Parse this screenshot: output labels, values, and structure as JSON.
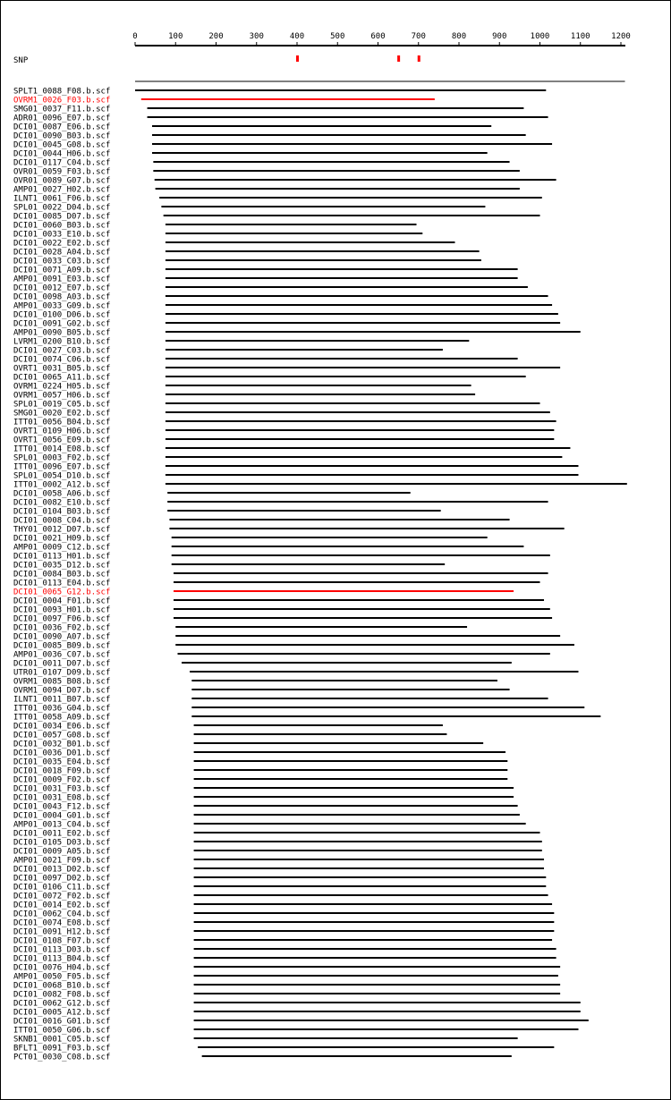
{
  "axis": {
    "min": 0,
    "max": 1200,
    "ticks": [
      0,
      100,
      200,
      300,
      400,
      500,
      600,
      700,
      800,
      900,
      1000,
      1100,
      1200
    ],
    "tick_labels": [
      "0",
      "100",
      "200",
      "300",
      "400",
      "500",
      "600",
      "700",
      "800",
      "900",
      "1000",
      "1100",
      "1200"
    ]
  },
  "snp": {
    "label": "SNP",
    "positions": [
      400,
      650,
      700
    ],
    "color": "#ff0000"
  },
  "colors": {
    "read": "#000000",
    "highlight": "#ff0000",
    "border": "#000000"
  },
  "reference": {
    "start": 0,
    "end": 1210
  },
  "reads": [
    {
      "name": "SPLT1_0088_F08.b.scf",
      "start": 0,
      "end": 1015,
      "highlight": false
    },
    {
      "name": "OVRM1_0026_F03.b.scf",
      "start": 15,
      "end": 740,
      "highlight": true
    },
    {
      "name": "SMG01_0037_F11.b.scf",
      "start": 30,
      "end": 960,
      "highlight": false
    },
    {
      "name": "ADR01_0096_E07.b.scf",
      "start": 30,
      "end": 1020,
      "highlight": false
    },
    {
      "name": "DCI01_0087_E06.b.scf",
      "start": 42,
      "end": 880,
      "highlight": false
    },
    {
      "name": "DCI01_0090_B03.b.scf",
      "start": 42,
      "end": 965,
      "highlight": false
    },
    {
      "name": "DCI01_0045_G08.b.scf",
      "start": 42,
      "end": 1030,
      "highlight": false
    },
    {
      "name": "DCI01_0044_H06.b.scf",
      "start": 42,
      "end": 870,
      "highlight": false
    },
    {
      "name": "DCI01_0117_C04.b.scf",
      "start": 45,
      "end": 925,
      "highlight": false
    },
    {
      "name": "OVR01_0059_F03.b.scf",
      "start": 45,
      "end": 950,
      "highlight": false
    },
    {
      "name": "OVR01_0089_G07.b.scf",
      "start": 48,
      "end": 1040,
      "highlight": false
    },
    {
      "name": "AMP01_0027_H02.b.scf",
      "start": 50,
      "end": 950,
      "highlight": false
    },
    {
      "name": "ILNT1_0061_F06.b.scf",
      "start": 60,
      "end": 1005,
      "highlight": false
    },
    {
      "name": "SPL01_0022_D04.b.scf",
      "start": 65,
      "end": 865,
      "highlight": false
    },
    {
      "name": "DCI01_0085_D07.b.scf",
      "start": 70,
      "end": 1000,
      "highlight": false
    },
    {
      "name": "DCI01_0060_B03.b.scf",
      "start": 75,
      "end": 695,
      "highlight": false
    },
    {
      "name": "DCI01_0033_E10.b.scf",
      "start": 75,
      "end": 710,
      "highlight": false
    },
    {
      "name": "DCI01_0022_E02.b.scf",
      "start": 75,
      "end": 790,
      "highlight": false
    },
    {
      "name": "DCI01_0028_A04.b.scf",
      "start": 75,
      "end": 850,
      "highlight": false
    },
    {
      "name": "DCI01_0033_C03.b.scf",
      "start": 75,
      "end": 855,
      "highlight": false
    },
    {
      "name": "DCI01_0071_A09.b.scf",
      "start": 75,
      "end": 945,
      "highlight": false
    },
    {
      "name": "AMP01_0091_E03.b.scf",
      "start": 75,
      "end": 945,
      "highlight": false
    },
    {
      "name": "DCI01_0012_E07.b.scf",
      "start": 75,
      "end": 970,
      "highlight": false
    },
    {
      "name": "DCI01_0098_A03.b.scf",
      "start": 75,
      "end": 1020,
      "highlight": false
    },
    {
      "name": "AMP01_0033_G09.b.scf",
      "start": 75,
      "end": 1030,
      "highlight": false
    },
    {
      "name": "DCI01_0100_D06.b.scf",
      "start": 75,
      "end": 1045,
      "highlight": false
    },
    {
      "name": "DCI01_0091_G02.b.scf",
      "start": 75,
      "end": 1050,
      "highlight": false
    },
    {
      "name": "AMP01_0090_B05.b.scf",
      "start": 75,
      "end": 1100,
      "highlight": false
    },
    {
      "name": "LVRM1_0200_B10.b.scf",
      "start": 75,
      "end": 825,
      "highlight": false
    },
    {
      "name": "DCI01_0027_C03.b.scf",
      "start": 75,
      "end": 760,
      "highlight": false
    },
    {
      "name": "DCI01_0074_C06.b.scf",
      "start": 75,
      "end": 945,
      "highlight": false
    },
    {
      "name": "OVRT1_0031_B05.b.scf",
      "start": 75,
      "end": 1050,
      "highlight": false
    },
    {
      "name": "DCI01_0065_A11.b.scf",
      "start": 75,
      "end": 965,
      "highlight": false
    },
    {
      "name": "OVRM1_0224_H05.b.scf",
      "start": 75,
      "end": 830,
      "highlight": false
    },
    {
      "name": "OVRM1_0057_H06.b.scf",
      "start": 75,
      "end": 840,
      "highlight": false
    },
    {
      "name": "SPL01_0019_C05.b.scf",
      "start": 75,
      "end": 1000,
      "highlight": false
    },
    {
      "name": "SMG01_0020_E02.b.scf",
      "start": 75,
      "end": 1025,
      "highlight": false
    },
    {
      "name": "ITT01_0056_B04.b.scf",
      "start": 75,
      "end": 1040,
      "highlight": false
    },
    {
      "name": "OVRT1_0109_H06.b.scf",
      "start": 75,
      "end": 1035,
      "highlight": false
    },
    {
      "name": "OVRT1_0056_E09.b.scf",
      "start": 75,
      "end": 1035,
      "highlight": false
    },
    {
      "name": "ITT01_0014_E08.b.scf",
      "start": 75,
      "end": 1075,
      "highlight": false
    },
    {
      "name": "SPL01_0003_F02.b.scf",
      "start": 75,
      "end": 1055,
      "highlight": false
    },
    {
      "name": "ITT01_0096_E07.b.scf",
      "start": 75,
      "end": 1095,
      "highlight": false
    },
    {
      "name": "SPL01_0054_D10.b.scf",
      "start": 75,
      "end": 1095,
      "highlight": false
    },
    {
      "name": "ITT01_0002_A12.b.scf",
      "start": 75,
      "end": 1215,
      "highlight": false
    },
    {
      "name": "DCI01_0058_A06.b.scf",
      "start": 80,
      "end": 680,
      "highlight": false
    },
    {
      "name": "DCI01_0082_E10.b.scf",
      "start": 80,
      "end": 1020,
      "highlight": false
    },
    {
      "name": "DCI01_0104_B03.b.scf",
      "start": 80,
      "end": 755,
      "highlight": false
    },
    {
      "name": "DCI01_0008_C04.b.scf",
      "start": 85,
      "end": 925,
      "highlight": false
    },
    {
      "name": "THY01_0012_D07.b.scf",
      "start": 85,
      "end": 1060,
      "highlight": false
    },
    {
      "name": "DCI01_0021_H09.b.scf",
      "start": 90,
      "end": 870,
      "highlight": false
    },
    {
      "name": "AMP01_0009_C12.b.scf",
      "start": 90,
      "end": 960,
      "highlight": false
    },
    {
      "name": "DCI01_0113_H01.b.scf",
      "start": 90,
      "end": 1025,
      "highlight": false
    },
    {
      "name": "DCI01_0035_D12.b.scf",
      "start": 90,
      "end": 765,
      "highlight": false
    },
    {
      "name": "DCI01_0084_B03.b.scf",
      "start": 95,
      "end": 1020,
      "highlight": false
    },
    {
      "name": "DCI01_0113_E04.b.scf",
      "start": 95,
      "end": 1000,
      "highlight": false
    },
    {
      "name": "DCI01_0065_G12.b.scf",
      "start": 95,
      "end": 935,
      "highlight": true
    },
    {
      "name": "DCI01_0004_F01.b.scf",
      "start": 95,
      "end": 1010,
      "highlight": false
    },
    {
      "name": "DCI01_0093_H01.b.scf",
      "start": 95,
      "end": 1025,
      "highlight": false
    },
    {
      "name": "DCI01_0097_F06.b.scf",
      "start": 95,
      "end": 1030,
      "highlight": false
    },
    {
      "name": "DCI01_0036_F02.b.scf",
      "start": 100,
      "end": 820,
      "highlight": false
    },
    {
      "name": "DCI01_0090_A07.b.scf",
      "start": 100,
      "end": 1050,
      "highlight": false
    },
    {
      "name": "DCI01_0085_B09.b.scf",
      "start": 100,
      "end": 1085,
      "highlight": false
    },
    {
      "name": "AMP01_0036_C07.b.scf",
      "start": 105,
      "end": 1025,
      "highlight": false
    },
    {
      "name": "DCI01_0011_D07.b.scf",
      "start": 115,
      "end": 930,
      "highlight": false
    },
    {
      "name": "UTR01_0107_D09.b.scf",
      "start": 135,
      "end": 1095,
      "highlight": false
    },
    {
      "name": "OVRM1_0085_B08.b.scf",
      "start": 140,
      "end": 895,
      "highlight": false
    },
    {
      "name": "OVRM1_0094_D07.b.scf",
      "start": 140,
      "end": 925,
      "highlight": false
    },
    {
      "name": "ILNT1_0011_B07.b.scf",
      "start": 140,
      "end": 1020,
      "highlight": false
    },
    {
      "name": "ITT01_0036_G04.b.scf",
      "start": 140,
      "end": 1110,
      "highlight": false
    },
    {
      "name": "ITT01_0058_A09.b.scf",
      "start": 140,
      "end": 1150,
      "highlight": false
    },
    {
      "name": "DCI01_0034_E06.b.scf",
      "start": 145,
      "end": 760,
      "highlight": false
    },
    {
      "name": "DCI01_0057_G08.b.scf",
      "start": 145,
      "end": 770,
      "highlight": false
    },
    {
      "name": "DCI01_0032_B01.b.scf",
      "start": 145,
      "end": 860,
      "highlight": false
    },
    {
      "name": "DCI01_0036_D01.b.scf",
      "start": 145,
      "end": 915,
      "highlight": false
    },
    {
      "name": "DCI01_0035_E04.b.scf",
      "start": 145,
      "end": 920,
      "highlight": false
    },
    {
      "name": "DCI01_0018_F09.b.scf",
      "start": 145,
      "end": 920,
      "highlight": false
    },
    {
      "name": "DCI01_0009_F02.b.scf",
      "start": 145,
      "end": 920,
      "highlight": false
    },
    {
      "name": "DCI01_0031_F03.b.scf",
      "start": 145,
      "end": 935,
      "highlight": false
    },
    {
      "name": "DCI01_0031_E08.b.scf",
      "start": 145,
      "end": 935,
      "highlight": false
    },
    {
      "name": "DCI01_0043_F12.b.scf",
      "start": 145,
      "end": 945,
      "highlight": false
    },
    {
      "name": "DCI01_0004_G01.b.scf",
      "start": 145,
      "end": 950,
      "highlight": false
    },
    {
      "name": "AMP01_0013_C04.b.scf",
      "start": 145,
      "end": 965,
      "highlight": false
    },
    {
      "name": "DCI01_0011_E02.b.scf",
      "start": 145,
      "end": 1000,
      "highlight": false
    },
    {
      "name": "DCI01_0105_D03.b.scf",
      "start": 145,
      "end": 1005,
      "highlight": false
    },
    {
      "name": "DCI01_0009_A05.b.scf",
      "start": 145,
      "end": 1005,
      "highlight": false
    },
    {
      "name": "AMP01_0021_F09.b.scf",
      "start": 145,
      "end": 1010,
      "highlight": false
    },
    {
      "name": "DCI01_0013_D02.b.scf",
      "start": 145,
      "end": 1010,
      "highlight": false
    },
    {
      "name": "DCI01_0097_D02.b.scf",
      "start": 145,
      "end": 1015,
      "highlight": false
    },
    {
      "name": "DCI01_0106_C11.b.scf",
      "start": 145,
      "end": 1015,
      "highlight": false
    },
    {
      "name": "DCI01_0072_F02.b.scf",
      "start": 145,
      "end": 1020,
      "highlight": false
    },
    {
      "name": "DCI01_0014_E02.b.scf",
      "start": 145,
      "end": 1030,
      "highlight": false
    },
    {
      "name": "DCI01_0062_C04.b.scf",
      "start": 145,
      "end": 1035,
      "highlight": false
    },
    {
      "name": "DCI01_0074_E08.b.scf",
      "start": 145,
      "end": 1035,
      "highlight": false
    },
    {
      "name": "DCI01_0091_H12.b.scf",
      "start": 145,
      "end": 1035,
      "highlight": false
    },
    {
      "name": "DCI01_0108_F07.b.scf",
      "start": 145,
      "end": 1030,
      "highlight": false
    },
    {
      "name": "DCI01_0113_D03.b.scf",
      "start": 145,
      "end": 1040,
      "highlight": false
    },
    {
      "name": "DCI01_0113_B04.b.scf",
      "start": 145,
      "end": 1040,
      "highlight": false
    },
    {
      "name": "DCI01_0076_H04.b.scf",
      "start": 145,
      "end": 1050,
      "highlight": false
    },
    {
      "name": "AMP01_0050_F05.b.scf",
      "start": 145,
      "end": 1045,
      "highlight": false
    },
    {
      "name": "DCI01_0068_B10.b.scf",
      "start": 145,
      "end": 1050,
      "highlight": false
    },
    {
      "name": "DCI01_0082_F08.b.scf",
      "start": 145,
      "end": 1050,
      "highlight": false
    },
    {
      "name": "DCI01_0062_G12.b.scf",
      "start": 145,
      "end": 1100,
      "highlight": false
    },
    {
      "name": "DCI01_0005_A12.b.scf",
      "start": 145,
      "end": 1100,
      "highlight": false
    },
    {
      "name": "DCI01_0016_G01.b.scf",
      "start": 145,
      "end": 1120,
      "highlight": false
    },
    {
      "name": "ITT01_0050_G06.b.scf",
      "start": 145,
      "end": 1095,
      "highlight": false
    },
    {
      "name": "SKNB1_0001_C05.b.scf",
      "start": 145,
      "end": 945,
      "highlight": false
    },
    {
      "name": "BFLT1_0091_F03.b.scf",
      "start": 155,
      "end": 1035,
      "highlight": false
    },
    {
      "name": "PCT01_0030_C08.b.scf",
      "start": 165,
      "end": 930,
      "highlight": false
    }
  ]
}
